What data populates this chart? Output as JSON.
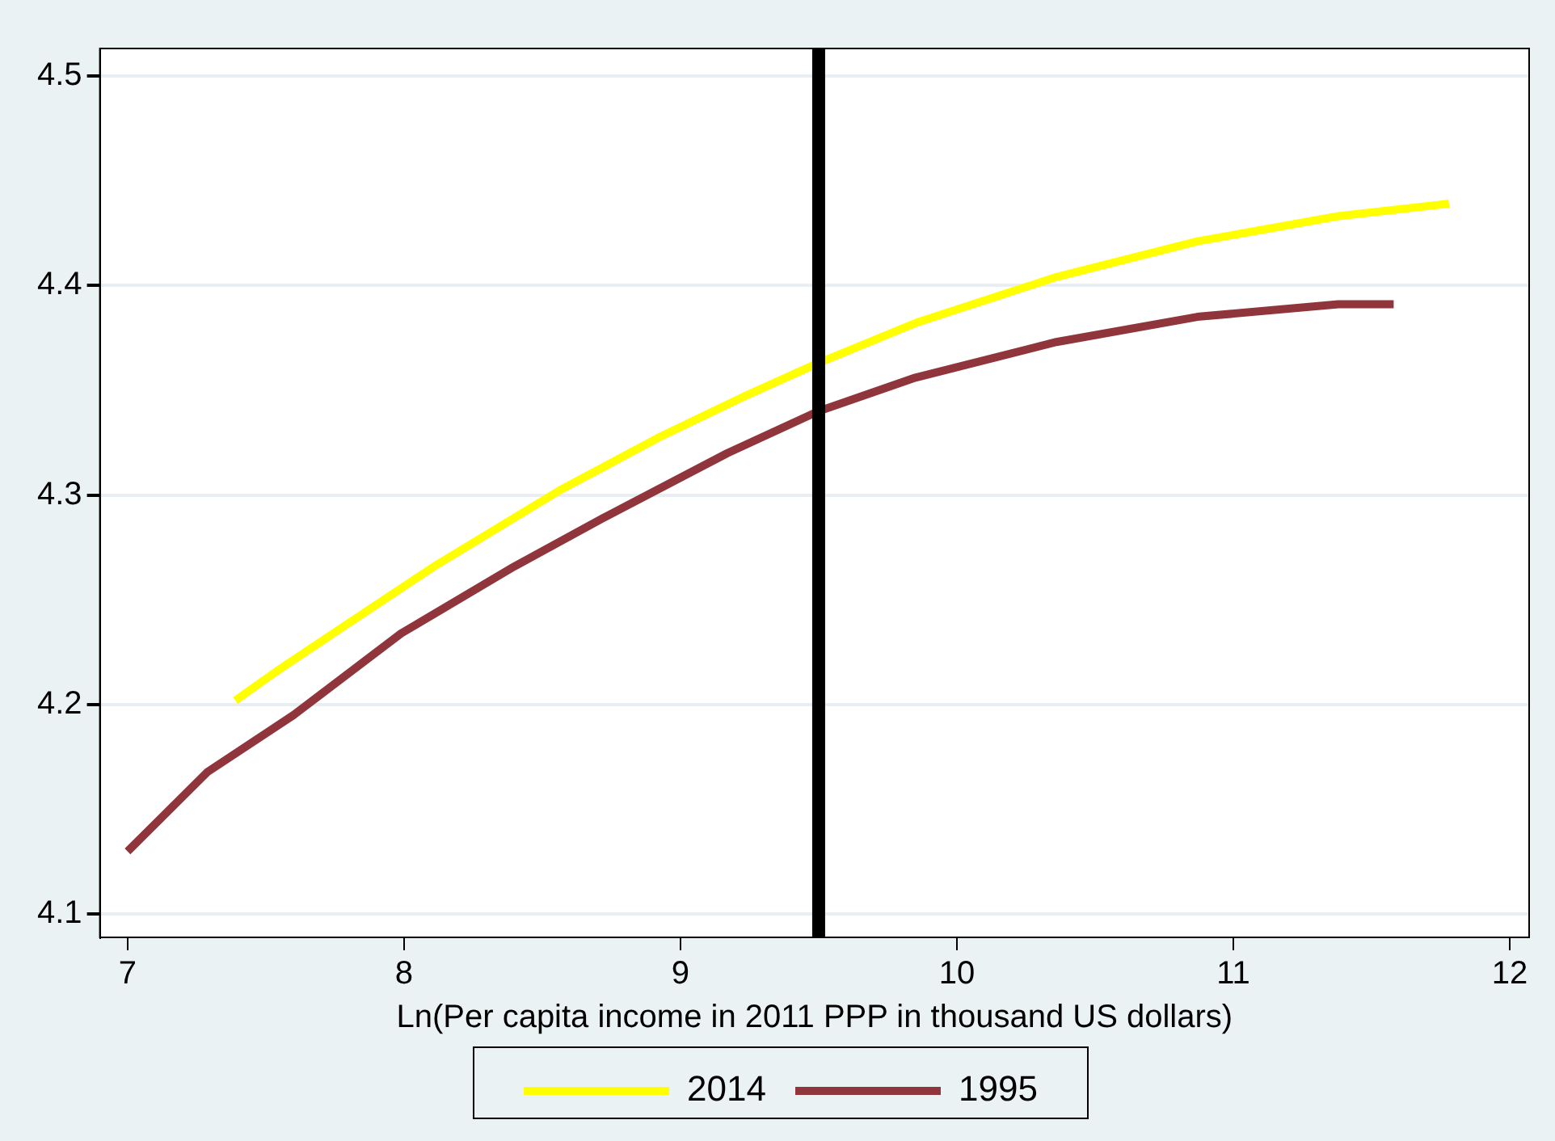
{
  "chart_data": {
    "type": "line",
    "xlabel": "Ln(Per capita income in 2011 PPP in thousand US dollars)",
    "xlim": [
      6.9,
      12.07
    ],
    "xticks": [
      7,
      8,
      9,
      10,
      11,
      12
    ],
    "ylim": [
      4.089,
      4.513
    ],
    "yticks": [
      4.1,
      4.2,
      4.3,
      4.4,
      4.5
    ],
    "grid": "y",
    "legend": "bottom",
    "marker": "none",
    "line_style": "solid",
    "ref_lines": [
      {
        "axis": "x",
        "value": 9.5,
        "color": "#000000"
      }
    ],
    "series": [
      {
        "name": "2014",
        "color": "#ffff00",
        "x": [
          7.39,
          7.54,
          7.79,
          8.11,
          8.56,
          8.93,
          9.23,
          9.5,
          9.85,
          10.36,
          10.87,
          11.38,
          11.78
        ],
        "values": [
          4.202,
          4.216,
          4.238,
          4.266,
          4.302,
          4.328,
          4.347,
          4.363,
          4.382,
          4.404,
          4.421,
          4.433,
          4.439
        ]
      },
      {
        "name": "1995",
        "color": "#90353b",
        "x": [
          7.0,
          7.29,
          7.6,
          7.99,
          8.4,
          8.72,
          9.17,
          9.5,
          9.85,
          10.36,
          10.87,
          11.38,
          11.58
        ],
        "values": [
          4.13,
          4.168,
          4.195,
          4.234,
          4.266,
          4.289,
          4.32,
          4.34,
          4.356,
          4.373,
          4.385,
          4.391,
          4.391
        ]
      }
    ]
  }
}
